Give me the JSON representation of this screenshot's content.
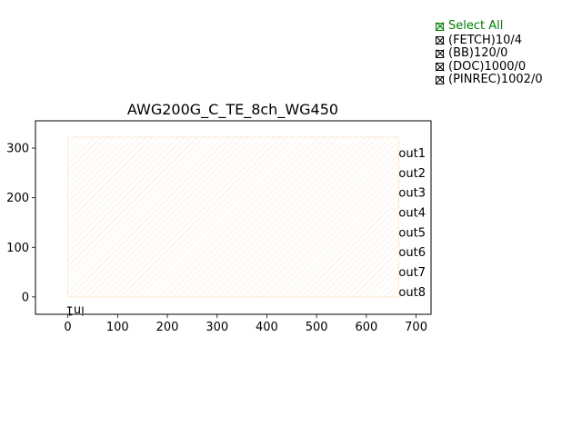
{
  "checkboxes": {
    "select_all": "Select All",
    "items": [
      "(FETCH)10/4",
      "(BB)120/0",
      "(DOC)1000/0",
      "(PINREC)1002/0"
    ]
  },
  "colors": {
    "select_all": "#008000",
    "component_hatch": "#f5c89a"
  },
  "chart_data": {
    "type": "layout",
    "title": "AWG200G_C_TE_8ch_WG450",
    "x_ticks": [
      0,
      100,
      200,
      300,
      400,
      500,
      600,
      700
    ],
    "y_ticks": [
      0,
      100,
      200,
      300
    ],
    "xlim": [
      -65,
      730
    ],
    "ylim": [
      -35,
      355
    ],
    "component": {
      "x": [
        0,
        665
      ],
      "y": [
        0,
        322
      ]
    },
    "ports": [
      {
        "name": "in1",
        "x": 0,
        "y": -10,
        "rotated": true
      },
      {
        "name": "out1",
        "x": 665,
        "y": 290
      },
      {
        "name": "out2",
        "x": 665,
        "y": 250
      },
      {
        "name": "out3",
        "x": 665,
        "y": 210
      },
      {
        "name": "out4",
        "x": 665,
        "y": 170
      },
      {
        "name": "out5",
        "x": 665,
        "y": 130
      },
      {
        "name": "out6",
        "x": 665,
        "y": 90
      },
      {
        "name": "out7",
        "x": 665,
        "y": 50
      },
      {
        "name": "out8",
        "x": 665,
        "y": 10
      }
    ]
  }
}
